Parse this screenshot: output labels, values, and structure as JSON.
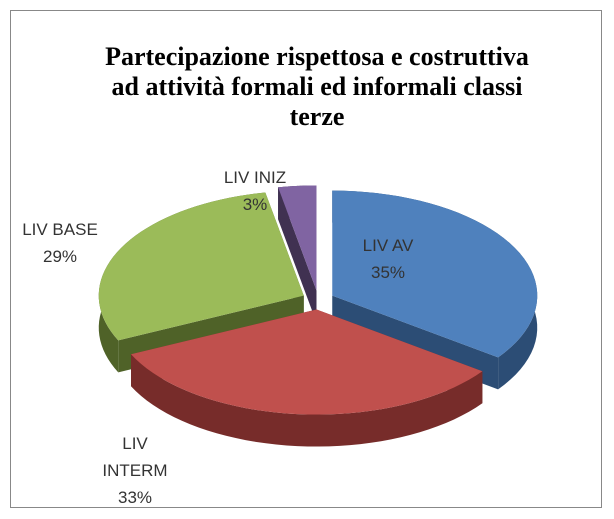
{
  "chart_data": {
    "type": "pie3d",
    "title": "Partecipazione rispettosa e costruttiva ad attività formali ed informali classi terze",
    "categories": [
      "LIV AV",
      "LIV INTERM",
      "LIV BASE",
      "LIV INIZ"
    ],
    "values": [
      35,
      33,
      29,
      3
    ],
    "value_labels": [
      "35%",
      "33%",
      "29%",
      "3%"
    ],
    "colors": [
      "#4f81bd",
      "#c0504d",
      "#9bbb59",
      "#8064a2"
    ],
    "side_colors": [
      "#2c4d75",
      "#772c2a",
      "#4f6228",
      "#403151"
    ]
  }
}
